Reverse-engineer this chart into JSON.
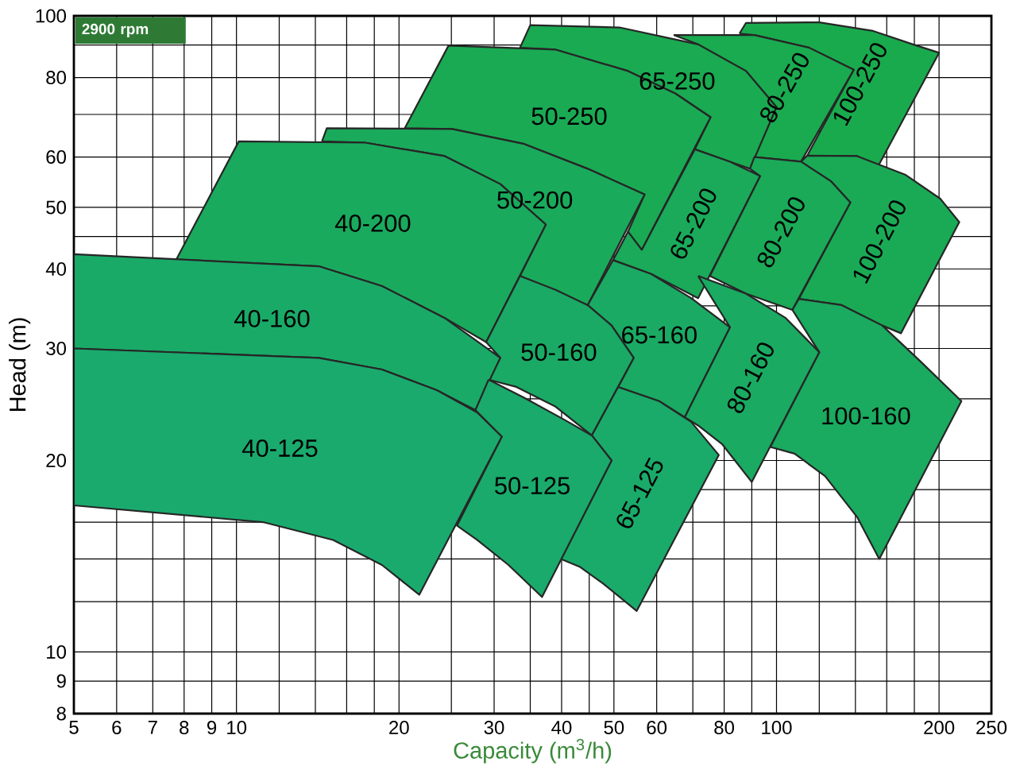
{
  "chart_data": {
    "type": "area",
    "title": "2900 rpm",
    "xlabel": "Capacity (m$^{3}$/h)",
    "ylabel": "Head (m)",
    "log": "xy",
    "grid": true,
    "xlim": [
      5,
      250
    ],
    "ylim": [
      8,
      100
    ],
    "xticks": [
      5,
      6,
      7,
      8,
      9,
      10,
      {
        "value": 12,
        "label": null
      },
      {
        "value": 14,
        "label": null
      },
      {
        "value": 16,
        "label": null
      },
      {
        "value": 18,
        "label": null
      },
      20,
      {
        "value": 25,
        "label": null
      },
      30,
      {
        "value": 35,
        "label": null
      },
      40,
      {
        "value": 45,
        "label": null
      },
      50,
      60,
      {
        "value": 70,
        "label": null
      },
      80,
      {
        "value": 90,
        "label": null
      },
      100,
      {
        "value": 120,
        "label": null
      },
      {
        "value": 140,
        "label": null
      },
      {
        "value": 160,
        "label": null
      },
      {
        "value": 180,
        "label": null
      },
      200,
      250
    ],
    "yticks": [
      8,
      9,
      10,
      {
        "value": 12,
        "label": null
      },
      {
        "value": 14,
        "label": null
      },
      {
        "value": 16,
        "label": null
      },
      {
        "value": 18,
        "label": null
      },
      20,
      {
        "value": 25,
        "label": null
      },
      30,
      {
        "value": 35,
        "label": null
      },
      40,
      {
        "value": 45,
        "label": null
      },
      50,
      60,
      {
        "value": 70,
        "label": null
      },
      80,
      {
        "value": 90,
        "label": null
      },
      100
    ],
    "series": [
      {
        "name": "100-250",
        "color": "#1aaa4e",
        "x": [
          85.4,
          87.8,
          120,
          151,
          179,
          200,
          154,
          141,
          114,
          139,
          115,
          91.0
        ],
        "values": [
          93.8,
          97.5,
          97.7,
          94.7,
          90.2,
          87.5,
          57.9,
          60.2,
          60.3,
          82.3,
          89.1,
          93.3
        ]
      },
      {
        "name": "80-250",
        "color": "#1aaa50",
        "x": [
          64.5,
          91.0,
          115,
          139,
          111,
          91.0,
          100,
          87.8,
          71.6
        ],
        "values": [
          93.3,
          93.3,
          89.1,
          82.3,
          59.0,
          60.0,
          71.9,
          81.9,
          90.2
        ]
      },
      {
        "name": "65-250",
        "color": "#1aaa52",
        "x": [
          33.5,
          35.0,
          51.2,
          71.6,
          87.8,
          100,
          89.3,
          82.0,
          70.6,
          75.5,
          65.0,
          53.1,
          39.0
        ],
        "values": [
          89.1,
          96.7,
          95.9,
          90.2,
          81.9,
          71.9,
          57.5,
          59.0,
          61.7,
          69.3,
          75.5,
          81.9,
          88.5
        ]
      },
      {
        "name": "65-200",
        "color": "#1aaa5a",
        "x": [
          70.6,
          82.0,
          93.3,
          71.6,
          58.6,
          49.8,
          53.1,
          56.3
        ],
        "values": [
          61.7,
          59.0,
          56.0,
          36.0,
          39.3,
          41.3,
          45.8,
          42.9
        ]
      },
      {
        "name": "50-250",
        "color": "#1aaa54",
        "x": [
          20.5,
          24.7,
          39.0,
          53.1,
          65.0,
          75.5,
          56.3,
          53.1,
          57.0,
          44.7,
          34.1,
          25.1
        ],
        "values": [
          66.6,
          89.8,
          88.5,
          81.9,
          75.5,
          69.3,
          42.9,
          45.8,
          52.4,
          57.5,
          62.9,
          66.4
        ]
      },
      {
        "name": "100-200",
        "color": "#1aaa56",
        "x": [
          111,
          114,
          141,
          173,
          201,
          218,
          170,
          157,
          132,
          110,
          137,
          126
        ],
        "values": [
          59.0,
          60.3,
          60.2,
          56.3,
          51.6,
          47.4,
          31.7,
          32.6,
          35.1,
          35.9,
          50.9,
          55.0
        ]
      },
      {
        "name": "80-200",
        "color": "#1aaa58",
        "x": [
          89.3,
          91.0,
          111,
          126,
          137,
          107,
          87.8,
          75.3,
          93.3
        ],
        "values": [
          57.5,
          60.0,
          59.0,
          55.0,
          50.9,
          34.5,
          36.6,
          39.0,
          56.0
        ]
      },
      {
        "name": "50-200",
        "color": "#1aaa5c",
        "x": [
          14.4,
          14.7,
          25.1,
          34.1,
          44.7,
          57.0,
          44.7,
          33.5,
          37.4,
          30.8,
          24.3,
          17.3
        ],
        "values": [
          63.5,
          66.6,
          66.4,
          62.9,
          57.5,
          52.4,
          35.1,
          39.0,
          47.0,
          54.4,
          60.2,
          63.2
        ]
      },
      {
        "name": "40-200",
        "color": "#1aaa5e",
        "x": [
          7.74,
          10.1,
          17.3,
          24.3,
          30.8,
          37.4,
          29.0,
          24.3,
          18.6,
          14.2
        ],
        "values": [
          41.4,
          63.5,
          63.2,
          60.2,
          54.4,
          47.0,
          30.7,
          33.5,
          37.6,
          40.4
        ]
      },
      {
        "name": "100-160",
        "color": "#1aaa60",
        "x": [
          110,
          132,
          157,
          185,
          220,
          155,
          141,
          123,
          108,
          97.4,
          120,
          107
        ],
        "values": [
          35.9,
          35.1,
          32.6,
          28.6,
          24.8,
          14.0,
          16.3,
          18.9,
          20.5,
          21.0,
          29.6,
          34.5
        ]
      },
      {
        "name": "80-160",
        "color": "#1aaa62",
        "x": [
          71.6,
          87.8,
          104,
          120,
          90.0,
          79.4,
          71.6,
          67.6,
          82.0
        ],
        "values": [
          39.0,
          36.6,
          33.5,
          29.6,
          18.5,
          21.2,
          22.7,
          23.4,
          32.4
        ]
      },
      {
        "name": "65-160",
        "color": "#1aaa64",
        "x": [
          49.8,
          58.6,
          69.5,
          82.0,
          67.6,
          60.6,
          50.9,
          54.4,
          49.5,
          44.7
        ],
        "values": [
          41.3,
          39.3,
          36.0,
          32.4,
          23.4,
          24.8,
          26.1,
          29.0,
          32.6,
          35.1
        ]
      },
      {
        "name": "50-160",
        "color": "#1aaa66",
        "x": [
          33.5,
          39.0,
          44.7,
          49.5,
          54.4,
          45.5,
          39.0,
          33.0,
          29.3,
          30.8,
          29.0
        ],
        "values": [
          39.0,
          37.1,
          35.1,
          32.6,
          29.0,
          21.9,
          24.3,
          26.1,
          26.8,
          29.0,
          30.7
        ]
      },
      {
        "name": "40-160",
        "color": "#1aaa68",
        "x": [
          5,
          14.2,
          18.6,
          24.3,
          30.8,
          27.7,
          23.5,
          18.6,
          14.2,
          5
        ],
        "values": [
          42.2,
          40.4,
          37.6,
          33.5,
          29.0,
          24.0,
          25.8,
          27.8,
          29.0,
          30
        ]
      },
      {
        "name": "65-125",
        "color": "#1aaa6a",
        "x": [
          50.9,
          60.6,
          69.5,
          78.2,
          55.1,
          47.8,
          43.3,
          39.9,
          49.5,
          45.5
        ],
        "values": [
          26.1,
          24.8,
          23.0,
          20.4,
          11.6,
          12.8,
          13.6,
          14.0,
          20.0,
          21.9
        ]
      },
      {
        "name": "50-125",
        "color": "#1aaa6c",
        "x": [
          29.3,
          34.1,
          40.4,
          45.5,
          49.5,
          36.8,
          31.9,
          27.9,
          25.6,
          31.0,
          27.7
        ],
        "values": [
          26.8,
          25.1,
          23.2,
          21.9,
          20.0,
          12.2,
          13.7,
          15.0,
          15.8,
          21.8,
          24.0
        ]
      },
      {
        "name": "40-125",
        "color": "#1aaa6e",
        "x": [
          5,
          14.2,
          18.6,
          23.5,
          27.9,
          31.0,
          21.8,
          18.6,
          15.1,
          11.2,
          5
        ],
        "values": [
          30,
          29.0,
          27.8,
          25.8,
          23.8,
          21.8,
          12.3,
          13.7,
          15.0,
          16.0,
          17.0
        ]
      }
    ]
  }
}
